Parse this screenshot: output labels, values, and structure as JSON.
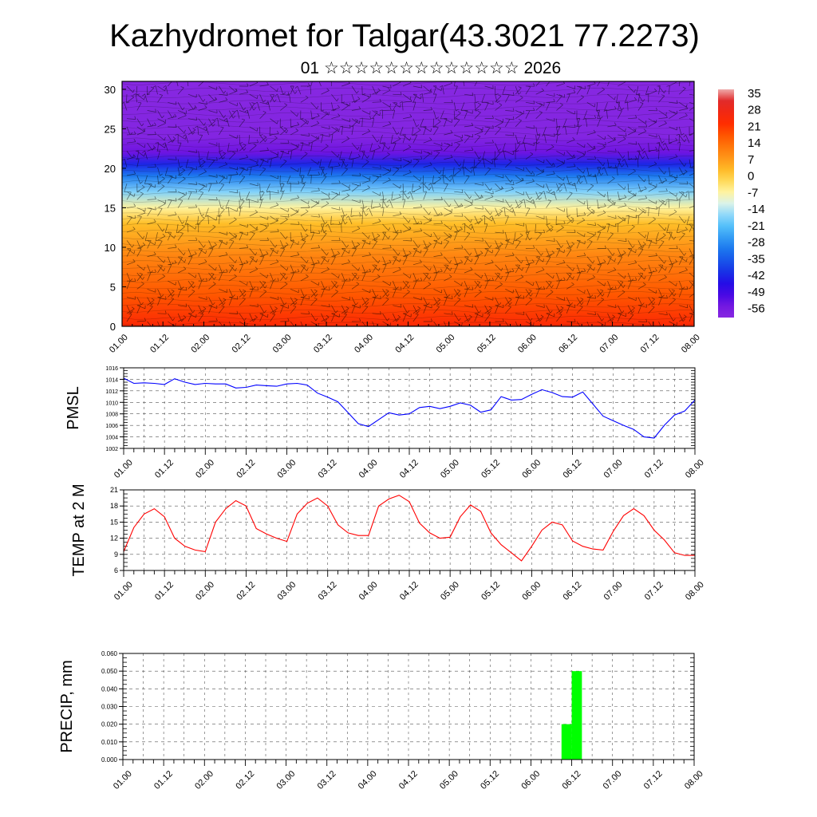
{
  "title": "Kazhydromet for Talgar(43.3021 77.2273)",
  "subtitle": "01 ☆☆☆☆☆☆☆☆☆☆☆☆☆ 2026",
  "time_labels": [
    "01.00",
    "01.12",
    "02.00",
    "02.12",
    "03.00",
    "03.12",
    "04.00",
    "04.12",
    "05.00",
    "05.12",
    "06.00",
    "06.12",
    "07.00",
    "07.12",
    "08.00"
  ],
  "chart_data": [
    {
      "type": "heatmap",
      "y_ticks": [
        "0",
        "5",
        "10",
        "15",
        "20",
        "25",
        "30"
      ],
      "ylim": [
        0,
        31
      ],
      "colorbar": {
        "labels": [
          "35",
          "28",
          "21",
          "14",
          "7",
          "0",
          "-7",
          "-14",
          "-21",
          "-28",
          "-35",
          "-42",
          "-49",
          "-56"
        ],
        "min": -63,
        "max": 35
      },
      "field_profile": [
        {
          "z": 0,
          "t": 22
        },
        {
          "z": 4,
          "t": 15
        },
        {
          "z": 9,
          "t": 8
        },
        {
          "z": 13,
          "t": 0
        },
        {
          "z": 15,
          "t": -9
        },
        {
          "z": 17,
          "t": -20
        },
        {
          "z": 19,
          "t": -33
        },
        {
          "z": 20.5,
          "t": -45
        },
        {
          "z": 22,
          "t": -57
        },
        {
          "z": 24,
          "t": -62
        },
        {
          "z": 31,
          "t": -63
        }
      ]
    },
    {
      "type": "line",
      "ylabel": "PMSL",
      "ylim": [
        1002,
        1016
      ],
      "y_ticks": [
        "1002",
        "1004",
        "1006",
        "1008",
        "1010",
        "1012",
        "1014",
        "1016"
      ],
      "color": "#0000ff",
      "x": [
        0,
        3,
        6,
        9,
        12,
        15,
        18,
        21,
        24,
        27,
        30,
        33,
        36,
        39,
        42,
        45,
        48,
        51,
        54,
        57,
        60,
        63,
        66,
        69,
        72,
        75,
        78,
        81,
        84,
        87,
        90,
        93,
        96,
        99,
        102,
        105,
        108,
        111,
        114,
        117,
        120,
        123,
        126,
        129,
        132,
        135,
        138,
        141,
        144,
        147,
        150,
        153,
        156,
        159,
        162,
        165,
        168
      ],
      "values": [
        1014.2,
        1013.3,
        1013.4,
        1013.3,
        1013.1,
        1014.1,
        1013.5,
        1013.1,
        1013.3,
        1013.2,
        1013.2,
        1012.5,
        1012.6,
        1013.0,
        1012.9,
        1012.8,
        1013.2,
        1013.3,
        1013.0,
        1011.6,
        1010.9,
        1010.1,
        1008.2,
        1006.3,
        1005.8,
        1007.0,
        1008.2,
        1007.8,
        1008.0,
        1009.1,
        1009.3,
        1008.9,
        1009.3,
        1009.9,
        1009.5,
        1008.3,
        1008.7,
        1011.0,
        1010.4,
        1010.5,
        1011.4,
        1012.2,
        1011.7,
        1011.0,
        1010.9,
        1011.8,
        1009.7,
        1007.6,
        1006.8,
        1006.0,
        1005.3,
        1004.0,
        1003.8,
        1006.0,
        1007.8,
        1008.5,
        1010.4
      ]
    },
    {
      "type": "line",
      "ylabel": "TEMP at 2 M",
      "ylim": [
        6,
        21
      ],
      "y_ticks": [
        "6",
        "9",
        "12",
        "15",
        "18",
        "21"
      ],
      "color": "#ff0000",
      "x": [
        0,
        3,
        6,
        9,
        12,
        15,
        18,
        21,
        24,
        27,
        30,
        33,
        36,
        39,
        42,
        45,
        48,
        51,
        54,
        57,
        60,
        63,
        66,
        69,
        72,
        75,
        78,
        81,
        84,
        87,
        90,
        93,
        96,
        99,
        102,
        105,
        108,
        111,
        114,
        117,
        120,
        123,
        126,
        129,
        132,
        135,
        138,
        141,
        144,
        147,
        150,
        153,
        156,
        159,
        162,
        165,
        168
      ],
      "values": [
        9.5,
        14.0,
        16.5,
        17.5,
        16.0,
        12.0,
        10.5,
        9.8,
        9.5,
        15.0,
        17.5,
        19.0,
        18.0,
        13.8,
        12.8,
        12.0,
        11.4,
        16.5,
        18.5,
        19.5,
        18.0,
        14.5,
        13.0,
        12.5,
        12.5,
        18.0,
        19.3,
        20.0,
        18.8,
        14.8,
        13.0,
        12.0,
        12.2,
        16.0,
        18.2,
        17.0,
        13.0,
        10.8,
        9.3,
        7.8,
        10.5,
        13.5,
        15.0,
        14.5,
        11.5,
        10.5,
        10.0,
        9.8,
        13.3,
        16.2,
        17.5,
        16.2,
        13.5,
        11.7,
        9.3,
        8.8,
        8.8
      ]
    },
    {
      "type": "bar",
      "ylabel": "PRECIP, mm",
      "ylim": [
        0,
        0.06
      ],
      "y_ticks": [
        "0.000",
        "0.010",
        "0.020",
        "0.030",
        "0.040",
        "0.050",
        "0.060"
      ],
      "color": "#00ff00",
      "bars": [
        {
          "x_start": 129,
          "x_end": 132,
          "value": 0.02
        },
        {
          "x_start": 132,
          "x_end": 135,
          "value": 0.05
        }
      ]
    }
  ]
}
